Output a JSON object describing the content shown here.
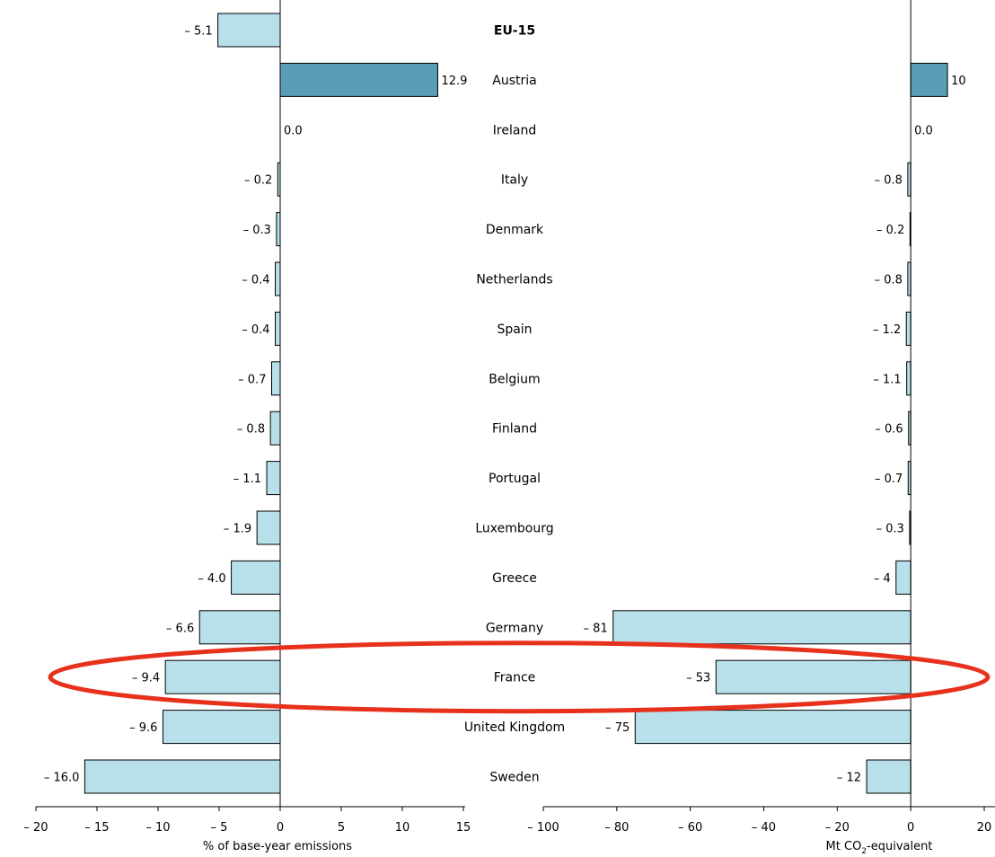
{
  "chart_data": {
    "type": "bar",
    "orientation": "horizontal",
    "categories": [
      "EU-15",
      "Austria",
      "Ireland",
      "Italy",
      "Denmark",
      "Netherlands",
      "Spain",
      "Belgium",
      "Finland",
      "Portugal",
      "Luxembourg",
      "Greece",
      "Germany",
      "France",
      "United Kingdom",
      "Sweden"
    ],
    "highlighted_category": "France",
    "colors": {
      "positive": "#5a9db7",
      "negative": "#b8e0ea",
      "highlight_ellipse": "#e8311c",
      "background": "#ffffff",
      "frame": "#000000"
    },
    "panels": [
      {
        "name": "percent",
        "xlabel": "% of base-year emissions",
        "xlim": [
          -20,
          15
        ],
        "ticks": [
          -20,
          -15,
          -10,
          -5,
          0,
          5,
          10,
          15
        ],
        "tick_labels": [
          "– 20",
          "– 15",
          "– 10",
          "– 5",
          "0",
          "5",
          "10",
          "15"
        ],
        "values": [
          -5.1,
          12.9,
          0.0,
          -0.2,
          -0.3,
          -0.4,
          -0.4,
          -0.7,
          -0.8,
          -1.1,
          -1.9,
          -4.0,
          -6.6,
          -9.4,
          -9.6,
          -16.0
        ],
        "value_labels": [
          "– 5.1",
          "12.9",
          "0.0",
          "– 0.2",
          "– 0.3",
          "– 0.4",
          "– 0.4",
          "– 0.7",
          "– 0.8",
          "– 1.1",
          "– 1.9",
          "– 4.0",
          "– 6.6",
          "– 9.4",
          "– 9.6",
          "– 16.0"
        ]
      },
      {
        "name": "absolute",
        "xlabel_main": "Mt CO",
        "xlabel_sub": "2",
        "xlabel_tail": "-equivalent",
        "xlim": [
          -100,
          20
        ],
        "ticks": [
          -100,
          -80,
          -60,
          -40,
          -20,
          0,
          20
        ],
        "tick_labels": [
          "– 100",
          "– 80",
          "– 60",
          "– 40",
          "– 20",
          "0",
          "20"
        ],
        "values": [
          null,
          10,
          0.0,
          -0.8,
          -0.2,
          -0.8,
          -1.2,
          -1.1,
          -0.6,
          -0.7,
          -0.3,
          -4,
          -81,
          -53,
          -75,
          -12
        ],
        "value_labels": [
          "",
          "10",
          "0.0",
          "– 0.8",
          "– 0.2",
          "– 0.8",
          "– 1.2",
          "– 1.1",
          "– 0.6",
          "– 0.7",
          "– 0.3",
          "– 4",
          "– 81",
          "– 53",
          "– 75",
          "– 12"
        ]
      }
    ]
  }
}
